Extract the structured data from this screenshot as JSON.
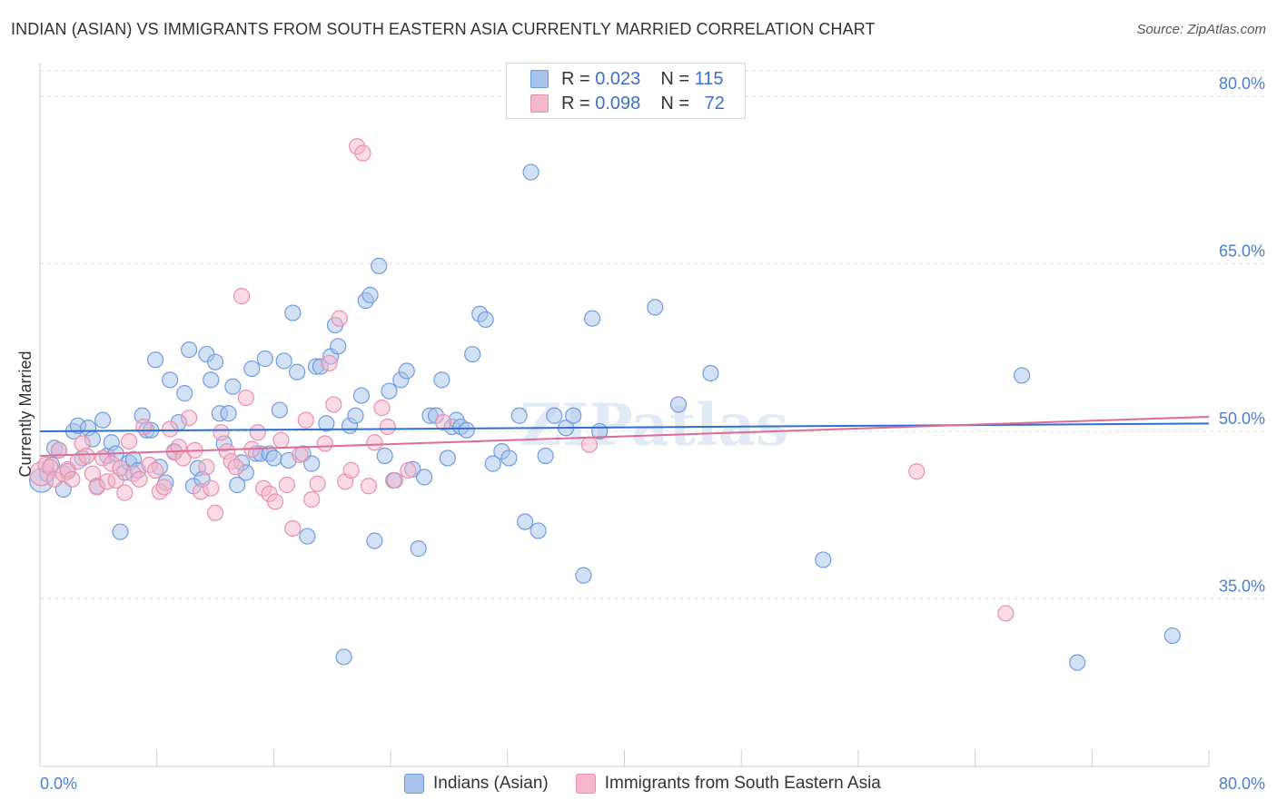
{
  "header": {
    "title": "INDIAN (ASIAN) VS IMMIGRANTS FROM SOUTH EASTERN ASIA CURRENTLY MARRIED CORRELATION CHART",
    "source": "Source: ZipAtlas.com"
  },
  "legend_stats": {
    "rows": [
      {
        "r_label": "R =",
        "r_value": "0.023",
        "n_label": "N =",
        "n_value": "115"
      },
      {
        "r_label": "R =",
        "r_value": "0.098",
        "n_label": "N =",
        "n_value": "72"
      }
    ]
  },
  "bottom_legend": {
    "items": [
      {
        "label": "Indians (Asian)"
      },
      {
        "label": "Immigrants from South Eastern Asia"
      }
    ]
  },
  "colors": {
    "blue_fill": "#a8c4ec",
    "blue_stroke": "#6f9ce0",
    "blue_line": "#2f6fd0",
    "pink_fill": "#f5b8cb",
    "pink_stroke": "#e890ad",
    "pink_line": "#e06b96",
    "grid": "#dcdcdc",
    "tick_text": "#4a7fd0"
  },
  "chart_data": {
    "type": "scatter",
    "ylabel": "Currently Married",
    "xlim": [
      0,
      80
    ],
    "ylim": [
      20,
      83
    ],
    "x_tick_labels": [
      "0.0%",
      "80.0%"
    ],
    "y_ticks": [
      {
        "value": 35,
        "label": "35.0%"
      },
      {
        "value": 50,
        "label": "50.0%"
      },
      {
        "value": 65,
        "label": "65.0%"
      },
      {
        "value": 80,
        "label": "80.0%"
      }
    ],
    "watermark": "ZIPatlas",
    "series": [
      {
        "name": "Indians (Asian)",
        "color": "blue",
        "trend": [
          [
            0,
            50.0
          ],
          [
            80,
            50.7
          ]
        ],
        "points": [
          [
            0.1,
            45.6
          ],
          [
            0.5,
            46.2
          ],
          [
            0.8,
            47.0
          ],
          [
            1.0,
            48.5
          ],
          [
            1.3,
            48.3
          ],
          [
            1.6,
            44.8
          ],
          [
            1.9,
            46.4
          ],
          [
            2.3,
            50.0
          ],
          [
            2.6,
            50.5
          ],
          [
            2.9,
            47.6
          ],
          [
            3.3,
            50.3
          ],
          [
            3.6,
            49.3
          ],
          [
            3.9,
            45.1
          ],
          [
            4.3,
            51.0
          ],
          [
            4.6,
            47.8
          ],
          [
            4.9,
            49.0
          ],
          [
            5.2,
            48.0
          ],
          [
            5.5,
            41.0
          ],
          [
            5.8,
            46.3
          ],
          [
            6.1,
            47.2
          ],
          [
            6.4,
            47.5
          ],
          [
            6.7,
            46.5
          ],
          [
            7.0,
            51.4
          ],
          [
            7.3,
            50.1
          ],
          [
            7.6,
            50.1
          ],
          [
            7.9,
            56.4
          ],
          [
            8.2,
            46.8
          ],
          [
            8.6,
            45.4
          ],
          [
            8.9,
            54.6
          ],
          [
            9.2,
            48.2
          ],
          [
            9.5,
            50.8
          ],
          [
            9.9,
            53.4
          ],
          [
            10.2,
            57.3
          ],
          [
            10.5,
            45.1
          ],
          [
            10.8,
            46.7
          ],
          [
            11.1,
            45.7
          ],
          [
            11.4,
            56.9
          ],
          [
            11.7,
            54.6
          ],
          [
            12.0,
            56.2
          ],
          [
            12.3,
            51.6
          ],
          [
            12.6,
            48.9
          ],
          [
            12.9,
            51.6
          ],
          [
            13.2,
            54.0
          ],
          [
            13.5,
            45.2
          ],
          [
            13.8,
            47.2
          ],
          [
            14.1,
            46.3
          ],
          [
            14.5,
            55.6
          ],
          [
            14.8,
            48.0
          ],
          [
            15.1,
            48.0
          ],
          [
            15.4,
            56.5
          ],
          [
            15.7,
            48.0
          ],
          [
            16.0,
            47.6
          ],
          [
            16.4,
            51.9
          ],
          [
            16.7,
            56.3
          ],
          [
            17.0,
            47.4
          ],
          [
            17.3,
            60.6
          ],
          [
            17.6,
            55.3
          ],
          [
            18.0,
            48.0
          ],
          [
            18.3,
            40.6
          ],
          [
            18.6,
            47.1
          ],
          [
            18.9,
            55.8
          ],
          [
            19.2,
            55.8
          ],
          [
            19.6,
            50.7
          ],
          [
            19.9,
            56.7
          ],
          [
            20.2,
            59.5
          ],
          [
            20.4,
            57.6
          ],
          [
            20.8,
            29.8
          ],
          [
            21.2,
            50.5
          ],
          [
            21.6,
            51.4
          ],
          [
            22.0,
            53.2
          ],
          [
            22.3,
            61.7
          ],
          [
            22.6,
            62.2
          ],
          [
            22.9,
            40.2
          ],
          [
            23.2,
            64.8
          ],
          [
            23.6,
            47.8
          ],
          [
            23.9,
            53.6
          ],
          [
            24.2,
            45.6
          ],
          [
            24.7,
            54.6
          ],
          [
            25.1,
            55.4
          ],
          [
            25.5,
            46.6
          ],
          [
            25.9,
            39.5
          ],
          [
            26.3,
            45.9
          ],
          [
            26.7,
            51.4
          ],
          [
            27.1,
            51.4
          ],
          [
            27.5,
            54.6
          ],
          [
            27.9,
            47.6
          ],
          [
            28.2,
            50.4
          ],
          [
            28.5,
            51.0
          ],
          [
            28.8,
            50.4
          ],
          [
            29.2,
            50.1
          ],
          [
            29.6,
            56.9
          ],
          [
            30.1,
            60.5
          ],
          [
            30.5,
            60.0
          ],
          [
            31.0,
            47.1
          ],
          [
            31.6,
            48.2
          ],
          [
            32.1,
            47.6
          ],
          [
            32.8,
            51.4
          ],
          [
            33.2,
            41.9
          ],
          [
            33.6,
            73.2
          ],
          [
            34.1,
            41.1
          ],
          [
            34.6,
            47.8
          ],
          [
            35.2,
            51.4
          ],
          [
            36.0,
            50.3
          ],
          [
            36.5,
            51.4
          ],
          [
            37.2,
            37.1
          ],
          [
            37.8,
            60.1
          ],
          [
            38.3,
            50.0
          ],
          [
            42.1,
            61.1
          ],
          [
            43.7,
            52.4
          ],
          [
            45.9,
            55.2
          ],
          [
            53.6,
            38.5
          ],
          [
            67.2,
            55.0
          ],
          [
            71.0,
            29.3
          ],
          [
            77.5,
            31.7
          ]
        ]
      },
      {
        "name": "Immigrants from South Eastern Asia",
        "color": "pink",
        "trend": [
          [
            0,
            47.8
          ],
          [
            80,
            51.3
          ]
        ],
        "points": [
          [
            0.1,
            46.2
          ],
          [
            0.4,
            47.0
          ],
          [
            0.7,
            46.8
          ],
          [
            1.0,
            45.7
          ],
          [
            1.3,
            48.3
          ],
          [
            1.6,
            46.2
          ],
          [
            1.9,
            46.6
          ],
          [
            2.2,
            45.7
          ],
          [
            2.6,
            47.3
          ],
          [
            2.9,
            48.9
          ],
          [
            3.2,
            47.8
          ],
          [
            3.6,
            46.2
          ],
          [
            3.9,
            45.0
          ],
          [
            4.3,
            47.6
          ],
          [
            4.6,
            45.5
          ],
          [
            4.9,
            47.1
          ],
          [
            5.2,
            45.6
          ],
          [
            5.5,
            46.7
          ],
          [
            5.8,
            44.5
          ],
          [
            6.1,
            49.1
          ],
          [
            6.4,
            46.2
          ],
          [
            6.8,
            45.7
          ],
          [
            7.1,
            50.4
          ],
          [
            7.5,
            47.0
          ],
          [
            7.9,
            46.5
          ],
          [
            8.2,
            44.6
          ],
          [
            8.5,
            45.0
          ],
          [
            8.9,
            50.2
          ],
          [
            9.2,
            48.1
          ],
          [
            9.5,
            48.6
          ],
          [
            9.8,
            47.6
          ],
          [
            10.2,
            51.2
          ],
          [
            10.6,
            48.3
          ],
          [
            11.0,
            44.6
          ],
          [
            11.4,
            46.8
          ],
          [
            11.7,
            44.9
          ],
          [
            12.0,
            42.7
          ],
          [
            12.4,
            49.9
          ],
          [
            12.8,
            48.2
          ],
          [
            13.1,
            47.3
          ],
          [
            13.4,
            46.8
          ],
          [
            13.8,
            62.1
          ],
          [
            14.1,
            53.0
          ],
          [
            14.5,
            48.4
          ],
          [
            14.9,
            49.9
          ],
          [
            15.3,
            44.9
          ],
          [
            15.7,
            44.4
          ],
          [
            16.1,
            43.7
          ],
          [
            16.5,
            49.2
          ],
          [
            16.9,
            45.2
          ],
          [
            17.3,
            41.3
          ],
          [
            17.8,
            47.9
          ],
          [
            18.2,
            51.0
          ],
          [
            18.6,
            43.9
          ],
          [
            19.0,
            45.3
          ],
          [
            19.5,
            48.9
          ],
          [
            19.8,
            56.1
          ],
          [
            20.1,
            52.4
          ],
          [
            20.5,
            60.1
          ],
          [
            20.9,
            45.5
          ],
          [
            21.3,
            46.5
          ],
          [
            21.7,
            75.5
          ],
          [
            22.1,
            74.9
          ],
          [
            22.5,
            45.1
          ],
          [
            22.9,
            49.0
          ],
          [
            23.4,
            52.1
          ],
          [
            23.8,
            50.4
          ],
          [
            24.3,
            45.6
          ],
          [
            25.2,
            46.5
          ],
          [
            27.6,
            50.8
          ],
          [
            37.6,
            48.8
          ],
          [
            60.0,
            46.4
          ],
          [
            66.1,
            33.7
          ]
        ]
      }
    ]
  }
}
